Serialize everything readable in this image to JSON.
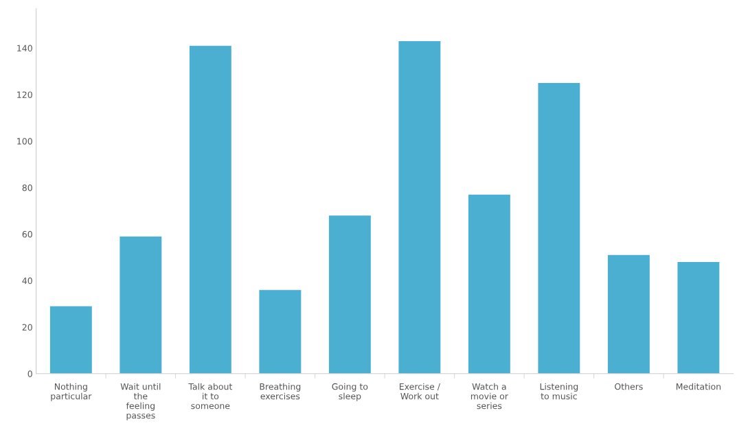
{
  "chart_data": {
    "type": "bar",
    "categories": [
      "Nothing particular",
      "Wait until the feeling passes",
      "Talk about it to someone",
      "Breathing exercises",
      "Going to sleep",
      "Exercise / Work out",
      "Watch a movie or series",
      "Listening to music",
      "Others",
      "Meditation"
    ],
    "values": [
      29,
      59,
      141,
      36,
      68,
      143,
      77,
      125,
      51,
      48
    ],
    "color": "#4bafd2",
    "ylim": [
      0,
      157
    ],
    "yticks": [
      0,
      20,
      40,
      60,
      80,
      100,
      120,
      140
    ],
    "grid": false
  }
}
